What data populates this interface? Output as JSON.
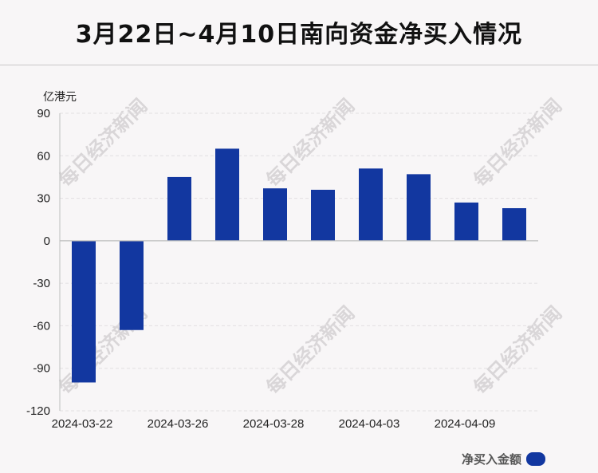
{
  "title": "3月22日~4月10日南向资金净买入情况",
  "unit_label": "亿港元",
  "watermark": "每日经济新闻",
  "legend": {
    "label": "净买入金额"
  },
  "colors": {
    "bar": "#1237a0",
    "grid": "#e2e0e2",
    "axis": "#bdbdbd",
    "text": "#222222",
    "watermark": "#d9d6d8"
  },
  "chart_data": {
    "type": "bar",
    "title": "3月22日~4月10日南向资金净买入情况",
    "ylabel": "亿港元",
    "ylim": [
      -120,
      90
    ],
    "yticks": [
      90,
      60,
      30,
      0,
      -30,
      -60,
      -90,
      -120
    ],
    "grid": true,
    "legend_position": "bottom-right",
    "x_tick_labels": [
      "2024-03-22",
      "2024-03-26",
      "2024-03-28",
      "2024-04-03",
      "2024-04-09"
    ],
    "series": [
      {
        "name": "净买入金额",
        "values": [
          -100,
          -63,
          45,
          65,
          37,
          36,
          51,
          47,
          27,
          23
        ]
      }
    ]
  }
}
